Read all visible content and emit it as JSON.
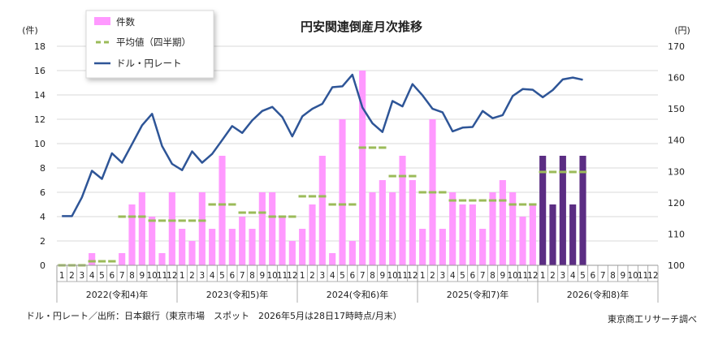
{
  "chart_data": {
    "type": "bar+line",
    "title": "円安関連倒産月次推移",
    "left_axis": {
      "unit": "(件)",
      "ylim": [
        0,
        18
      ],
      "ticks": [
        0,
        2,
        4,
        6,
        8,
        10,
        12,
        14,
        16,
        18
      ]
    },
    "right_axis": {
      "unit": "(円)",
      "ylim": [
        100,
        170
      ],
      "ticks": [
        100,
        110,
        120,
        130,
        140,
        150,
        160,
        170
      ]
    },
    "legend": {
      "bars": "件数",
      "avg": "平均値（四半期）",
      "rate": "ドル・円レート"
    },
    "years": [
      {
        "label": "2022(令和4)年",
        "months": [
          "1",
          "2",
          "3",
          "4",
          "5",
          "6",
          "7",
          "8",
          "9",
          "10",
          "11",
          "12"
        ]
      },
      {
        "label": "2023(令和5)年",
        "months": [
          "1",
          "2",
          "3",
          "4",
          "5",
          "6",
          "7",
          "8",
          "9",
          "10",
          "11",
          "12"
        ]
      },
      {
        "label": "2024(令和6)年",
        "months": [
          "1",
          "2",
          "3",
          "4",
          "5",
          "6",
          "7",
          "8",
          "9",
          "10",
          "11",
          "12"
        ]
      },
      {
        "label": "2025(令和7)年",
        "months": [
          "1",
          "2",
          "3",
          "4",
          "5",
          "6",
          "7",
          "8",
          "9",
          "10",
          "11",
          "12"
        ]
      },
      {
        "label": "2026(令和8)年",
        "months": [
          "1",
          "2",
          "3",
          "4",
          "5",
          "6",
          "7",
          "8",
          "9",
          "10",
          "11",
          "12"
        ]
      }
    ],
    "series": [
      {
        "name": "件数",
        "color": "#ff99ff",
        "highlight_color": "#5b2d83",
        "highlight_from_index": 48,
        "values": [
          0,
          0,
          0,
          1,
          0,
          0,
          1,
          5,
          6,
          4,
          1,
          6,
          3,
          2,
          6,
          3,
          9,
          3,
          4,
          3,
          6,
          6,
          4,
          2,
          3,
          5,
          9,
          1,
          12,
          2,
          16,
          6,
          7,
          6,
          9,
          7,
          3,
          12,
          3,
          6,
          5,
          5,
          3,
          6,
          7,
          6,
          4,
          5,
          9,
          5,
          9,
          5,
          9
        ]
      },
      {
        "name": "平均値（四半期）",
        "color": "#9bbb59",
        "values": [
          0,
          0,
          0,
          0.33,
          0.33,
          0.33,
          4,
          4,
          4,
          3.67,
          3.67,
          3.67,
          3.67,
          3.67,
          3.67,
          5,
          5,
          5,
          4.33,
          4.33,
          4.33,
          4,
          4,
          4,
          5.67,
          5.67,
          5.67,
          5,
          5,
          5,
          9.67,
          9.67,
          9.67,
          7.33,
          7.33,
          7.33,
          6,
          6,
          6,
          5.33,
          5.33,
          5.33,
          5.33,
          5.33,
          5.33,
          5,
          5,
          5,
          7.67,
          7.67,
          7.67,
          7.67,
          7.67
        ]
      },
      {
        "name": "ドル・円レート",
        "color": "#2e5597",
        "values": [
          115.7,
          115.7,
          121.7,
          130.2,
          127.6,
          135.8,
          132.8,
          138.7,
          144.7,
          148.4,
          138.1,
          132.4,
          130.4,
          136.4,
          132.8,
          135.6,
          140.0,
          144.5,
          142.3,
          146.3,
          149.3,
          150.6,
          147.4,
          141.2,
          147.6,
          150.0,
          151.6,
          156.9,
          157.2,
          160.9,
          150.4,
          145.4,
          142.6,
          152.5,
          150.8,
          157.9,
          154.3,
          150.0,
          148.9,
          142.8,
          144.0,
          144.2,
          149.3,
          147.0,
          148.0,
          154.1,
          156.3,
          156.1,
          153.7,
          156.0,
          159.4,
          160.0,
          159.3
        ]
      }
    ]
  },
  "footer": {
    "source": "ドル・円レート／出所：日本銀行（東京市場　スポット　2026年5月は28日17時時点/月末）",
    "credit": "東京商工リサーチ調べ"
  }
}
